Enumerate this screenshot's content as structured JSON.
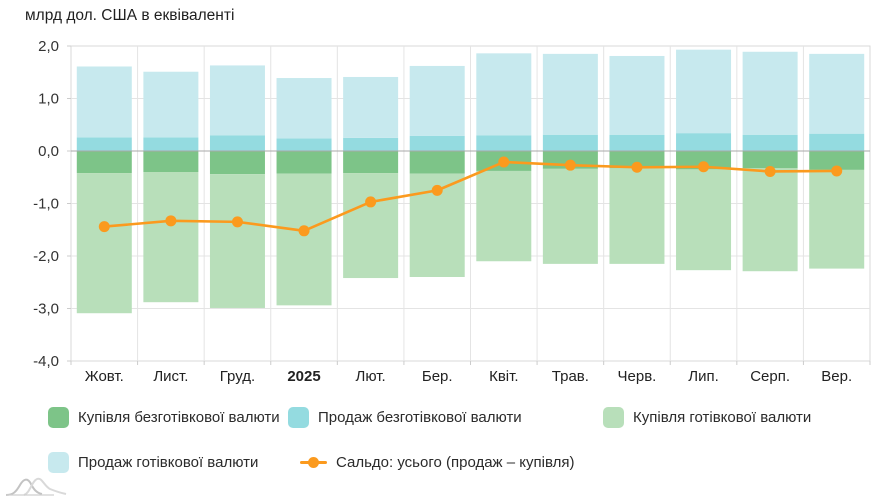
{
  "title": "млрд дол. США в еквіваленті",
  "chart_data": {
    "type": "bar",
    "subtype": "stacked-bars-with-line-overlay",
    "categories": [
      "Жовт.",
      "Лист.",
      "Груд.",
      "2025",
      "Лют.",
      "Бер.",
      "Квіт.",
      "Трав.",
      "Черв.",
      "Лип.",
      "Серп.",
      "Вер."
    ],
    "bold_category": "2025",
    "series": [
      {
        "name": "Купівля безготівкової валюти",
        "type": "bar",
        "color": "#7dc488",
        "values": [
          -0.42,
          -0.4,
          -0.44,
          -0.43,
          -0.42,
          -0.43,
          -0.38,
          -0.34,
          -0.33,
          -0.35,
          -0.33,
          -0.36
        ]
      },
      {
        "name": "Продаж безготівкової валюти",
        "type": "bar",
        "color": "#94dbe0",
        "values": [
          0.26,
          0.26,
          0.3,
          0.24,
          0.25,
          0.29,
          0.3,
          0.31,
          0.31,
          0.34,
          0.31,
          0.33
        ]
      },
      {
        "name": "Купівля готівкової валюти",
        "type": "bar",
        "color": "#b8dfba",
        "values": [
          -2.67,
          -2.48,
          -2.55,
          -2.51,
          -2.0,
          -1.97,
          -1.72,
          -1.81,
          -1.82,
          -1.92,
          -1.96,
          -1.88
        ]
      },
      {
        "name": "Продаж готівкової валюти",
        "type": "bar",
        "color": "#c7e9ee",
        "values": [
          1.35,
          1.25,
          1.33,
          1.15,
          1.16,
          1.33,
          1.56,
          1.54,
          1.5,
          1.59,
          1.58,
          1.52
        ]
      },
      {
        "name": "Сальдо: усього (продаж – купівля)",
        "type": "line",
        "color": "#fb9a1e",
        "values": [
          -1.44,
          -1.33,
          -1.35,
          -1.52,
          -0.97,
          -0.75,
          -0.21,
          -0.27,
          -0.31,
          -0.3,
          -0.39,
          -0.38
        ]
      }
    ],
    "ylabel": "млрд дол. США в еквіваленті",
    "ylim": [
      -4,
      2
    ],
    "yticks": {
      "values": [
        2,
        1,
        0,
        -1,
        -2,
        -3,
        -4
      ],
      "labels": [
        "2,0",
        "1,0",
        "0,0",
        "-1,0",
        "-2,0",
        "-3,0",
        "-4,0"
      ]
    },
    "grid": true,
    "legend_position": "bottom",
    "layout": {
      "grid_color": "#e4e4e4",
      "zero_line_color": "#a9a9a9",
      "axis_text_color": "#333333",
      "tick_color": "#cccccc",
      "plot_border_color": "#d9d9d9",
      "x_label_color": "#222222"
    }
  },
  "legend": {
    "items": [
      {
        "label": "Купівля безготівкової валюти",
        "color": "#7dc488",
        "type": "swatch"
      },
      {
        "label": "Продаж безготівкової валюти",
        "color": "#94dbe0",
        "type": "swatch"
      },
      {
        "label": "Купівля готівкової валюти",
        "color": "#b8dfba",
        "type": "swatch"
      },
      {
        "label": "Продаж готівкової валюти",
        "color": "#c7e9ee",
        "type": "swatch"
      },
      {
        "label": "Сальдо: усього (продаж – купівля)",
        "color": "#fb9a1e",
        "type": "line"
      }
    ]
  }
}
